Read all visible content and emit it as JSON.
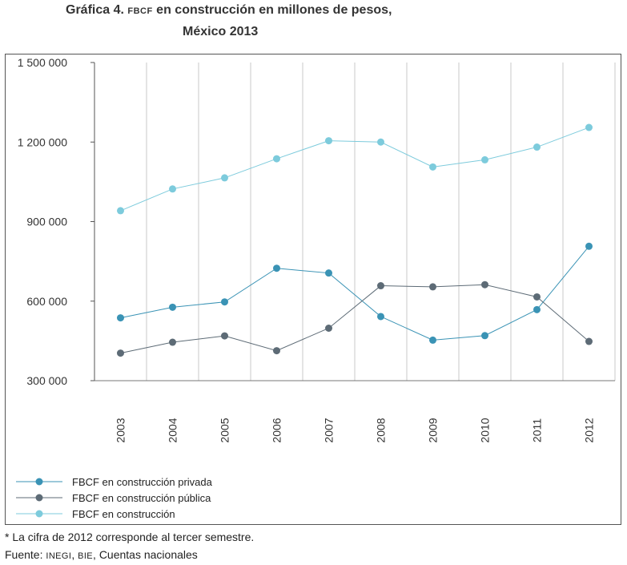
{
  "header": {
    "title_prefix": "Gráfica 4.",
    "title_abbr": "FBCF",
    "title_rest": "en construcción en millones de pesos,",
    "title_line2": "México 2013"
  },
  "footer": {
    "note": "* La cifra de 2012 corresponde al tercer semestre.",
    "source_label": "Fuente:",
    "source_inegi": "INEGI",
    "source_sep": ",",
    "source_bie": "BIE",
    "source_rest": ", Cuentas nacionales"
  },
  "colors": {
    "privada": "#3a93b5",
    "publica": "#5d6b76",
    "construccion": "#7dcbdc",
    "grid": "#c8c8c8"
  },
  "chart_data": {
    "type": "line",
    "title": "Gráfica 4. FBCF en construcción en millones de pesos, México 2013",
    "xlabel": "",
    "ylabel": "",
    "ylim": [
      300000,
      1500000
    ],
    "yticks": [
      300000,
      600000,
      900000,
      1200000,
      1500000
    ],
    "ytick_labels": [
      "300 000",
      "600 000",
      "900 000",
      "1 200 000",
      "1 500 000"
    ],
    "categories": [
      "2003",
      "2004",
      "2005",
      "2006",
      "2007",
      "2008",
      "2009",
      "2010",
      "2011",
      "2012"
    ],
    "series": [
      {
        "name": "FBCF en construcción privada",
        "color_key": "privada",
        "values": [
          537000,
          577000,
          597000,
          724000,
          706000,
          542000,
          453000,
          470000,
          568000,
          807000
        ]
      },
      {
        "name": "FBCF en construcción pública",
        "color_key": "publica",
        "values": [
          404000,
          445000,
          469000,
          413000,
          498000,
          658000,
          654000,
          662000,
          616000,
          448000
        ]
      },
      {
        "name": "FBCF en construcción",
        "color_key": "construccion",
        "values": [
          941000,
          1023000,
          1065000,
          1137000,
          1205000,
          1200000,
          1106000,
          1133000,
          1181000,
          1255000
        ]
      }
    ],
    "legend_position": "bottom-left",
    "grid": "vertical"
  }
}
